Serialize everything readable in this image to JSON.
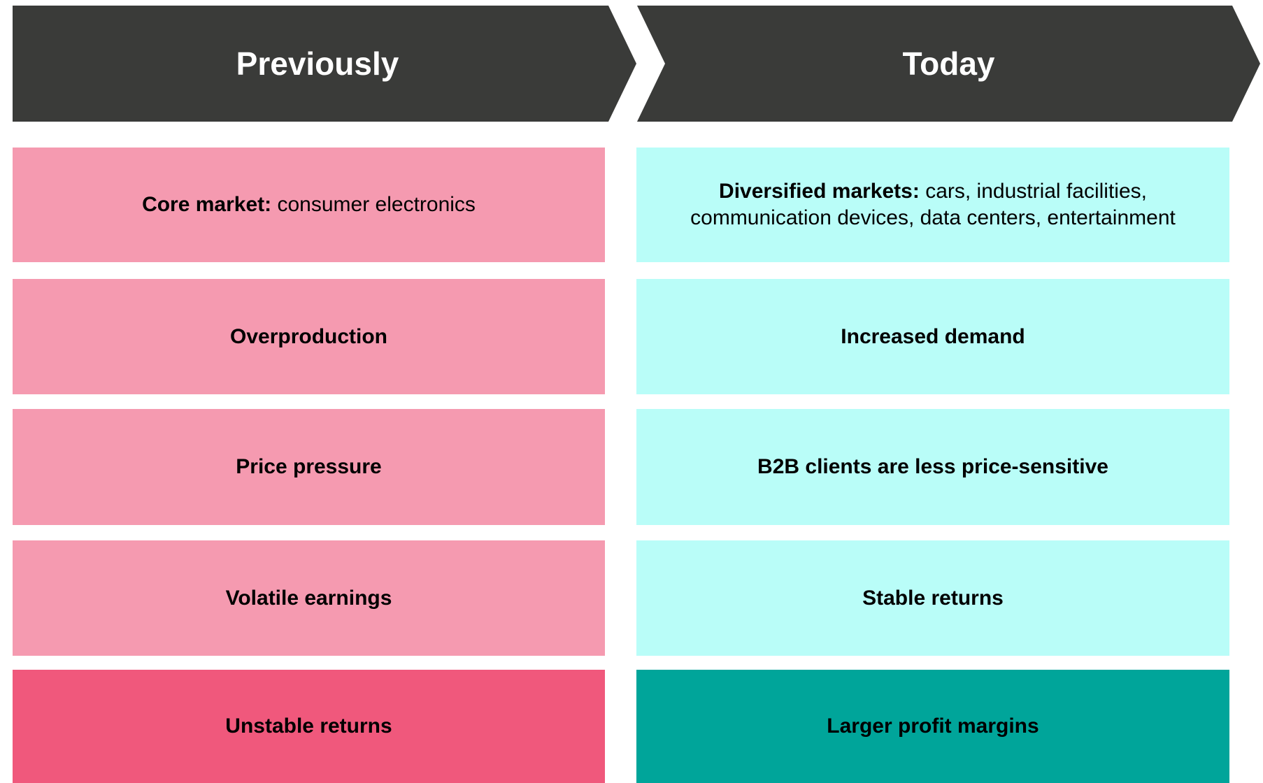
{
  "columns": [
    {
      "title": "Previously",
      "rows": [
        {
          "label": "Core market:",
          "text": "consumer electronics"
        },
        {
          "label": "Overproduction"
        },
        {
          "label": "Price pressure"
        },
        {
          "label": "Volatile earnings"
        },
        {
          "label": "Unstable returns"
        }
      ]
    },
    {
      "title": "Today",
      "rows": [
        {
          "label": "Diversified markets:",
          "text": "cars, industrial facilities, communication devices, data centers, entertainment"
        },
        {
          "label": "Increased demand"
        },
        {
          "label": "B2B clients are less price-sensitive"
        },
        {
          "label": "Stable returns"
        },
        {
          "label": "Larger profit margins"
        }
      ]
    }
  ]
}
